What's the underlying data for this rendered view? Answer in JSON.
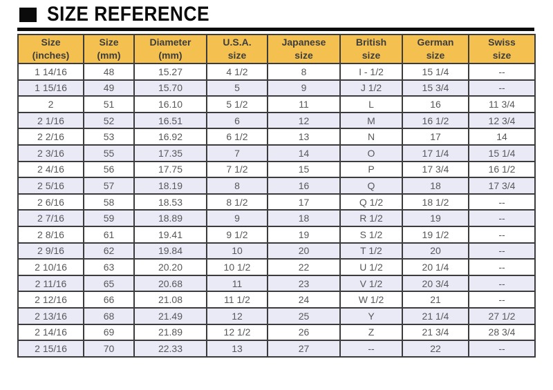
{
  "page": {
    "title": "SIZE REFERENCE"
  },
  "colors": {
    "title": "#0b0b0b",
    "header_bg": "#f4c04f",
    "header_text": "#3d3d3f",
    "row_alt_bg": "#eaeaf6",
    "cell_text": "#57575a",
    "border": "#3b3b3b"
  },
  "table": {
    "columns": [
      {
        "line1": "Size",
        "line2": "(inches)"
      },
      {
        "line1": "Size",
        "line2": "(mm)"
      },
      {
        "line1": "Diameter",
        "line2": "(mm)"
      },
      {
        "line1": "U.S.A.",
        "line2": "size"
      },
      {
        "line1": "Japanese",
        "line2": "size"
      },
      {
        "line1": "British",
        "line2": "size"
      },
      {
        "line1": "German",
        "line2": "size"
      },
      {
        "line1": "Swiss",
        "line2": "size"
      }
    ],
    "rows": [
      [
        "1 14/16",
        "48",
        "15.27",
        "4 1/2",
        "8",
        "I - 1/2",
        "15 1/4",
        "--"
      ],
      [
        "1 15/16",
        "49",
        "15.70",
        "5",
        "9",
        "J 1/2",
        "15 3/4",
        "--"
      ],
      [
        "2",
        "51",
        "16.10",
        "5 1/2",
        "11",
        "L",
        "16",
        "11 3/4"
      ],
      [
        "2 1/16",
        "52",
        "16.51",
        "6",
        "12",
        "M",
        "16 1/2",
        "12 3/4"
      ],
      [
        "2 2/16",
        "53",
        "16.92",
        "6 1/2",
        "13",
        "N",
        "17",
        "14"
      ],
      [
        "2 3/16",
        "55",
        "17.35",
        "7",
        "14",
        "O",
        "17 1/4",
        "15 1/4"
      ],
      [
        "2 4/16",
        "56",
        "17.75",
        "7 1/2",
        "15",
        "P",
        "17 3/4",
        "16 1/2"
      ],
      [
        "2 5/16",
        "57",
        "18.19",
        "8",
        "16",
        "Q",
        "18",
        "17 3/4"
      ],
      [
        "2 6/16",
        "58",
        "18.53",
        "8 1/2",
        "17",
        "Q 1/2",
        "18 1/2",
        "--"
      ],
      [
        "2 7/16",
        "59",
        "18.89",
        "9",
        "18",
        "R 1/2",
        "19",
        "--"
      ],
      [
        "2 8/16",
        "61",
        "19.41",
        "9 1/2",
        "19",
        "S 1/2",
        "19 1/2",
        "--"
      ],
      [
        "2 9/16",
        "62",
        "19.84",
        "10",
        "20",
        "T 1/2",
        "20",
        "--"
      ],
      [
        "2 10/16",
        "63",
        "20.20",
        "10 1/2",
        "22",
        "U 1/2",
        "20 1/4",
        "--"
      ],
      [
        "2 11/16",
        "65",
        "20.68",
        "11",
        "23",
        "V 1/2",
        "20 3/4",
        "--"
      ],
      [
        "2 12/16",
        "66",
        "21.08",
        "11 1/2",
        "24",
        "W 1/2",
        "21",
        "--"
      ],
      [
        "2 13/16",
        "68",
        "21.49",
        "12",
        "25",
        "Y",
        "21 1/4",
        "27 1/2"
      ],
      [
        "2 14/16",
        "69",
        "21.89",
        "12 1/2",
        "26",
        "Z",
        "21 3/4",
        "28 3/4"
      ],
      [
        "2 15/16",
        "70",
        "22.33",
        "13",
        "27",
        "--",
        "22",
        "--"
      ]
    ]
  }
}
